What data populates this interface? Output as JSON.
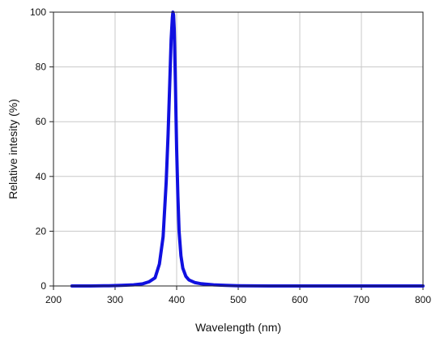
{
  "chart_data": {
    "type": "line",
    "xlabel": "Wavelength (nm)",
    "ylabel": "Relative intesity (%)",
    "xlim": [
      200,
      800
    ],
    "ylim": [
      0,
      100
    ],
    "xticks": [
      200,
      300,
      400,
      500,
      600,
      700,
      800
    ],
    "yticks": [
      0,
      20,
      40,
      60,
      80,
      100
    ],
    "grid": true,
    "series_color": "#1010e0",
    "series": [
      {
        "x": [
          230,
          260,
          290,
          310,
          330,
          345,
          355,
          365,
          372,
          378,
          383,
          386,
          389,
          391,
          393,
          394,
          395,
          396,
          397,
          398,
          399,
          400,
          402,
          404,
          407,
          410,
          415,
          420,
          430,
          440,
          460,
          480,
          500,
          550,
          600,
          650,
          700,
          750,
          800
        ],
        "y": [
          0,
          0,
          0.1,
          0.2,
          0.4,
          0.8,
          1.5,
          3,
          8,
          18,
          38,
          55,
          75,
          90,
          98,
          100,
          99,
          94,
          85,
          74,
          62,
          50,
          33,
          20,
          11,
          6.5,
          3.5,
          2.2,
          1.2,
          0.8,
          0.4,
          0.2,
          0.1,
          0,
          0,
          0,
          0,
          0,
          0
        ]
      }
    ]
  }
}
